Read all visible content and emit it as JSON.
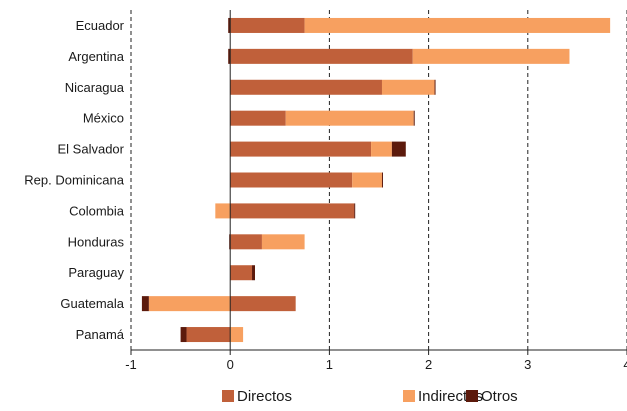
{
  "chart_data": {
    "type": "bar",
    "orientation": "horizontal",
    "stacked": true,
    "title": "",
    "xlabel": "",
    "ylabel": "",
    "xlim": [
      -1,
      4
    ],
    "xticks": [
      -1,
      0,
      1,
      2,
      3,
      4
    ],
    "xtick_labels": [
      "-1",
      "0",
      "1",
      "2",
      "3",
      "4"
    ],
    "grid": "vertical dashed",
    "legend_position": "bottom",
    "categories": [
      "Ecuador",
      "Argentina",
      "Nicaragua",
      "México",
      "El Salvador",
      "Rep. Dominicana",
      "Colombia",
      "Honduras",
      "Paraguay",
      "Guatemala",
      "Panamá"
    ],
    "series": [
      {
        "name": "Directos",
        "color": "#c0603a",
        "values": [
          0.75,
          1.84,
          1.53,
          0.56,
          1.42,
          1.23,
          1.25,
          0.32,
          0.22,
          0.66,
          -0.44
        ]
      },
      {
        "name": "Indirectos",
        "color": "#f7a060",
        "values": [
          3.08,
          1.58,
          0.53,
          1.29,
          0.21,
          0.3,
          -0.15,
          0.43,
          0.0,
          -0.82,
          0.13
        ]
      },
      {
        "name": "Otros",
        "color": "#5c1a0c",
        "values": [
          -0.02,
          -0.02,
          0.01,
          0.01,
          0.14,
          0.01,
          0.01,
          -0.01,
          0.03,
          -0.07,
          -0.06
        ]
      }
    ]
  }
}
